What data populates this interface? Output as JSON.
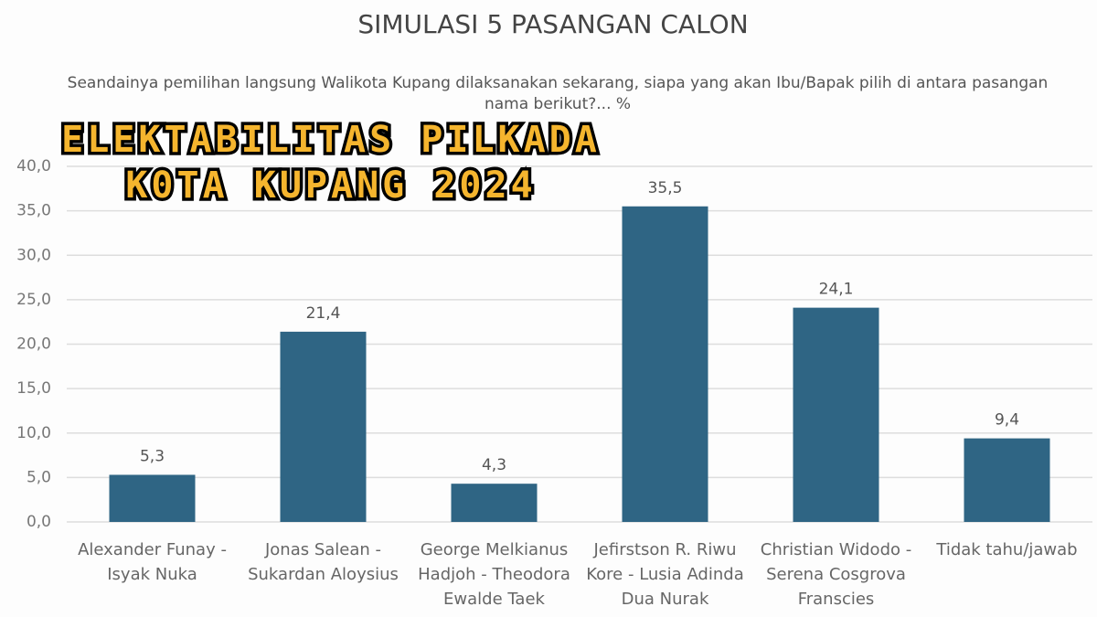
{
  "chart_data": {
    "type": "bar",
    "title": "SIMULASI 5 PASANGAN CALON",
    "subtitle": "Seandainya pemilihan langsung Walikota Kupang dilaksanakan sekarang, siapa yang akan Ibu/Bapak pilih di antara pasangan nama berikut?... %",
    "overlay_title": [
      "ELEKTABILITAS PILKADA",
      "K0TA KUPANG 2024"
    ],
    "categories": [
      "Alexander Funay - Isyak Nuka",
      "Jonas Salean - Sukardan Aloysius",
      "George Melkianus Hadjoh - Theodora Ewalde Taek",
      "Jefirstson R. Riwu Kore - Lusia Adinda Dua Nurak",
      "Christian Widodo - Serena Cosgrova Franscies",
      "Tidak tahu/jawab"
    ],
    "values": [
      5.3,
      21.4,
      4.3,
      35.5,
      24.1,
      9.4
    ],
    "value_labels": [
      "5,3",
      "21,4",
      "4,3",
      "35,5",
      "24,1",
      "9,4"
    ],
    "color": "#2f6584",
    "ylim": [
      0,
      40
    ],
    "yticks": [
      {
        "value": 0,
        "label": "0,0"
      },
      {
        "value": 5,
        "label": "5,0"
      },
      {
        "value": 10,
        "label": "10,0"
      },
      {
        "value": 15,
        "label": "15,0"
      },
      {
        "value": 20,
        "label": "20,0"
      },
      {
        "value": 25,
        "label": "25,0"
      },
      {
        "value": 30,
        "label": "30,0"
      },
      {
        "value": 35,
        "label": "35,0"
      },
      {
        "value": 40,
        "label": "40,0"
      }
    ],
    "grid": true
  }
}
